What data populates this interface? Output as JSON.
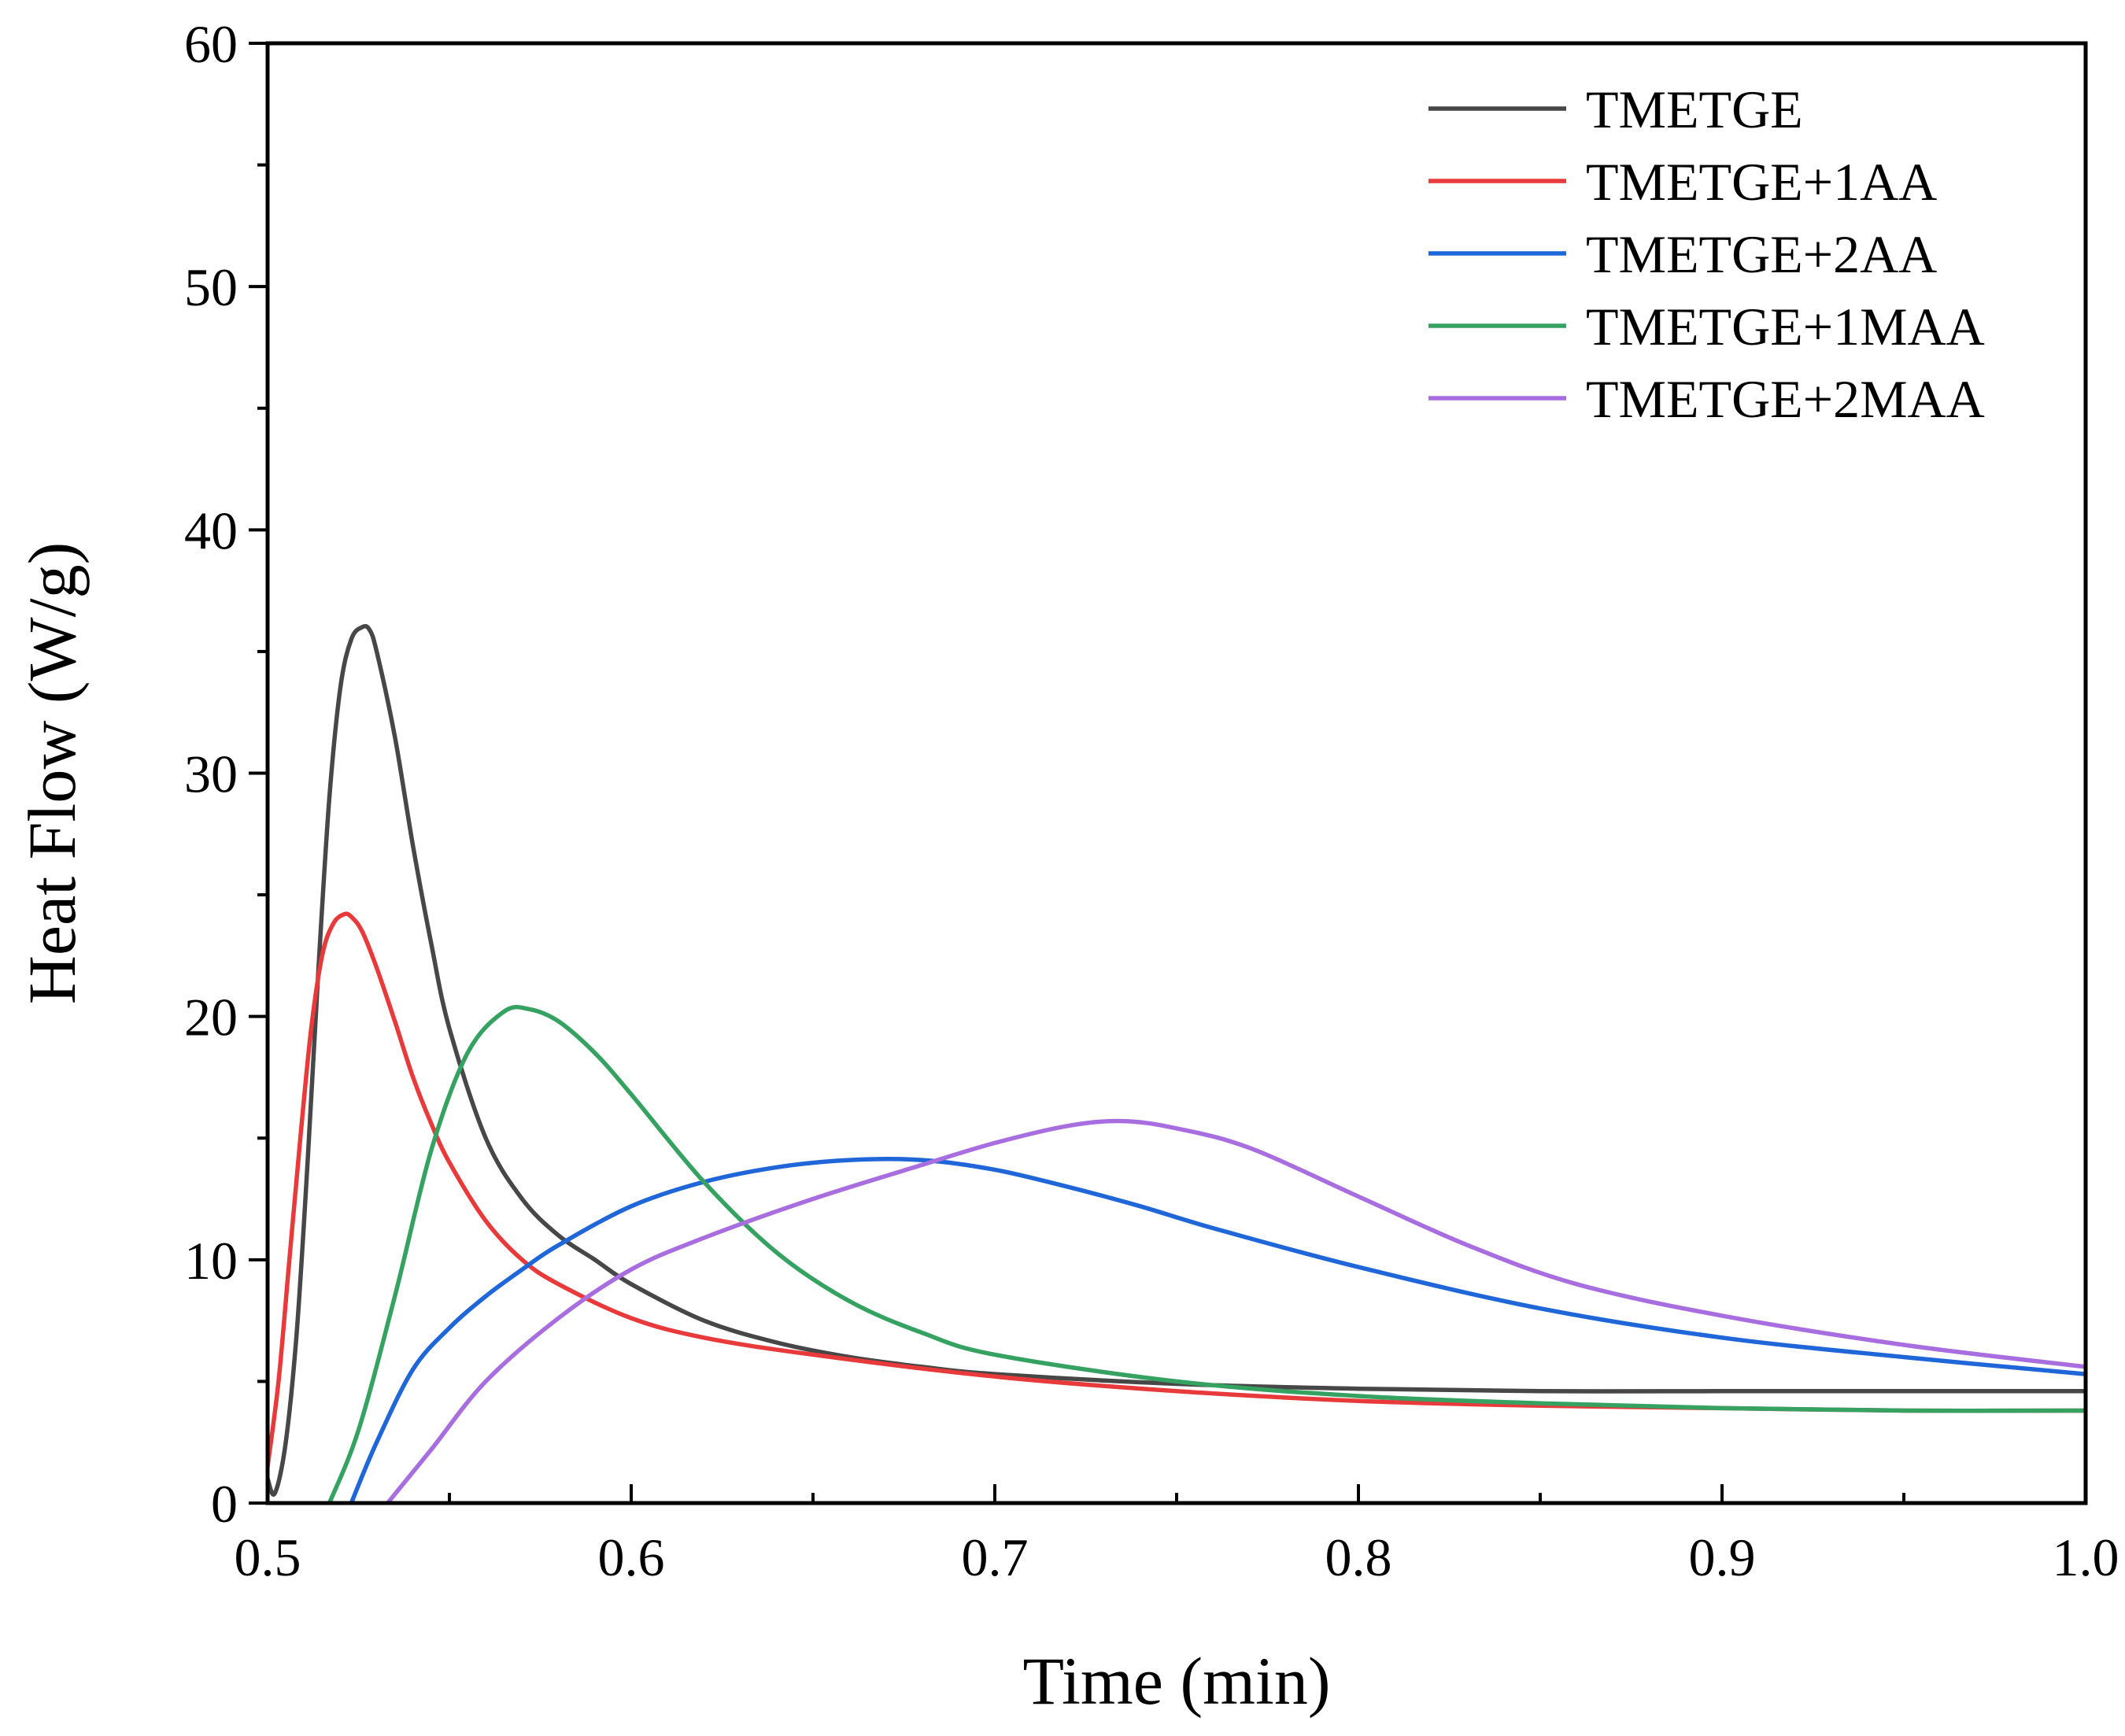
{
  "chart_data": {
    "type": "line",
    "title": "",
    "xlabel": "Time (min)",
    "ylabel": "Heat Flow (W/g)",
    "xlim": [
      0.5,
      1.0
    ],
    "ylim": [
      0,
      60
    ],
    "x_ticks": [
      0.5,
      0.6,
      0.7,
      0.8,
      0.9,
      1.0
    ],
    "x_tick_labels": [
      "0.5",
      "0.6",
      "0.7",
      "0.8",
      "0.9",
      "1.0"
    ],
    "y_ticks": [
      0,
      10,
      20,
      30,
      40,
      50,
      60
    ],
    "y_tick_labels": [
      "0",
      "10",
      "20",
      "30",
      "40",
      "50",
      "60"
    ],
    "grid": false,
    "legend_position": "top-right",
    "series": [
      {
        "name": "TMETGE",
        "color": "#474747",
        "x": [
          0.5,
          0.502,
          0.505,
          0.508,
          0.511,
          0.514,
          0.517,
          0.52,
          0.523,
          0.526,
          0.528,
          0.53,
          0.535,
          0.54,
          0.545,
          0.55,
          0.56,
          0.57,
          0.58,
          0.59,
          0.6,
          0.62,
          0.64,
          0.66,
          0.68,
          0.7,
          0.75,
          0.8,
          0.85,
          0.9,
          0.95,
          1.0
        ],
        "y": [
          1.0,
          0.4,
          2.5,
          7.0,
          14.0,
          22.0,
          29.0,
          33.5,
          35.5,
          36.0,
          35.9,
          35.0,
          31.5,
          27.0,
          23.0,
          19.5,
          15.0,
          12.5,
          11.0,
          10.0,
          9.0,
          7.5,
          6.6,
          6.0,
          5.6,
          5.3,
          4.9,
          4.7,
          4.6,
          4.6,
          4.6,
          4.6
        ]
      },
      {
        "name": "TMETGE+1AA",
        "color": "#e8393b",
        "x": [
          0.5,
          0.503,
          0.506,
          0.509,
          0.512,
          0.515,
          0.518,
          0.521,
          0.523,
          0.526,
          0.53,
          0.535,
          0.54,
          0.545,
          0.55,
          0.56,
          0.57,
          0.58,
          0.6,
          0.62,
          0.65,
          0.7,
          0.75,
          0.8,
          0.85,
          0.9,
          0.95,
          1.0
        ],
        "y": [
          1.5,
          5.0,
          10.0,
          15.0,
          19.5,
          22.5,
          23.8,
          24.2,
          24.1,
          23.5,
          22.0,
          19.8,
          17.5,
          15.6,
          14.0,
          11.6,
          10.0,
          9.0,
          7.6,
          6.8,
          6.1,
          5.2,
          4.6,
          4.2,
          4.0,
          3.9,
          3.8,
          3.8
        ]
      },
      {
        "name": "TMETGE+2AA",
        "color": "#1f66d8",
        "x": [
          0.523,
          0.53,
          0.54,
          0.55,
          0.56,
          0.57,
          0.58,
          0.6,
          0.62,
          0.64,
          0.66,
          0.68,
          0.7,
          0.72,
          0.74,
          0.76,
          0.8,
          0.85,
          0.9,
          0.95,
          1.0
        ],
        "y": [
          0.0,
          2.5,
          5.5,
          7.2,
          8.5,
          9.6,
          10.6,
          12.2,
          13.2,
          13.8,
          14.1,
          14.1,
          13.7,
          13.0,
          12.2,
          11.3,
          9.7,
          8.0,
          6.8,
          6.0,
          5.3
        ]
      },
      {
        "name": "TMETGE+1MAA",
        "color": "#35a262",
        "x": [
          0.517,
          0.525,
          0.535,
          0.545,
          0.555,
          0.565,
          0.572,
          0.58,
          0.59,
          0.6,
          0.62,
          0.64,
          0.66,
          0.68,
          0.7,
          0.75,
          0.8,
          0.85,
          0.9,
          0.95,
          1.0
        ],
        "y": [
          0.0,
          3.0,
          8.5,
          14.5,
          18.5,
          20.2,
          20.3,
          19.8,
          18.5,
          16.8,
          13.2,
          10.3,
          8.3,
          7.0,
          6.1,
          5.0,
          4.4,
          4.1,
          3.9,
          3.8,
          3.8
        ]
      },
      {
        "name": "TMETGE+2MAA",
        "color": "#a86ee0",
        "x": [
          0.533,
          0.545,
          0.56,
          0.58,
          0.6,
          0.62,
          0.65,
          0.68,
          0.7,
          0.72,
          0.735,
          0.75,
          0.77,
          0.8,
          0.83,
          0.86,
          0.9,
          0.95,
          1.0
        ],
        "y": [
          0.0,
          2.2,
          5.0,
          7.6,
          9.6,
          10.9,
          12.5,
          13.9,
          14.8,
          15.5,
          15.7,
          15.4,
          14.6,
          12.6,
          10.6,
          9.0,
          7.7,
          6.5,
          5.6
        ]
      }
    ]
  }
}
